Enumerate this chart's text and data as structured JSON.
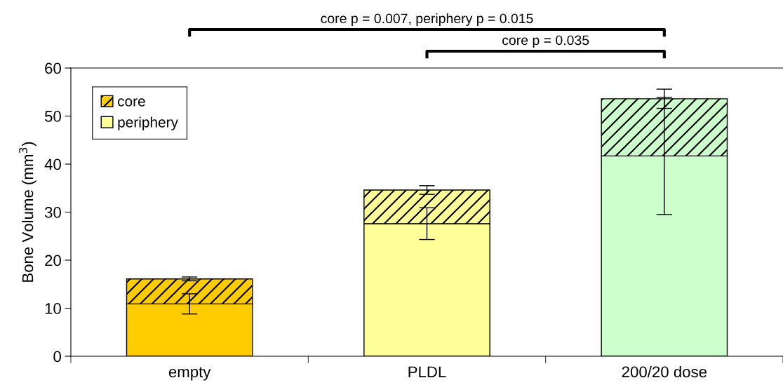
{
  "chart_data": {
    "type": "bar",
    "stacked": true,
    "ylabel": "Bone Volume (mm$^{3}$)",
    "categories": [
      "empty",
      "PLDL",
      "200/20 dose"
    ],
    "series": [
      {
        "name": "periphery",
        "colors": [
          "#ffcc00",
          "#ffff99",
          "#ccffcc"
        ],
        "values": [
          10.9,
          27.6,
          41.7
        ],
        "errors": [
          2.1,
          3.3,
          12.2
        ]
      },
      {
        "name": "core",
        "colors": [
          "#ffcc00",
          "#ffff99",
          "#ccffcc"
        ],
        "values": [
          5.2,
          7.0,
          11.9
        ],
        "errors": [
          0.4,
          0.9,
          2.0
        ]
      }
    ],
    "ylim": [
      0,
      60
    ],
    "yticks": [
      0,
      10,
      20,
      30,
      40,
      50,
      60
    ],
    "grid": false,
    "legend": "top left",
    "annotations": [
      "core p = 0.007, periphery p = 0.015",
      "core p = 0.035"
    ]
  }
}
